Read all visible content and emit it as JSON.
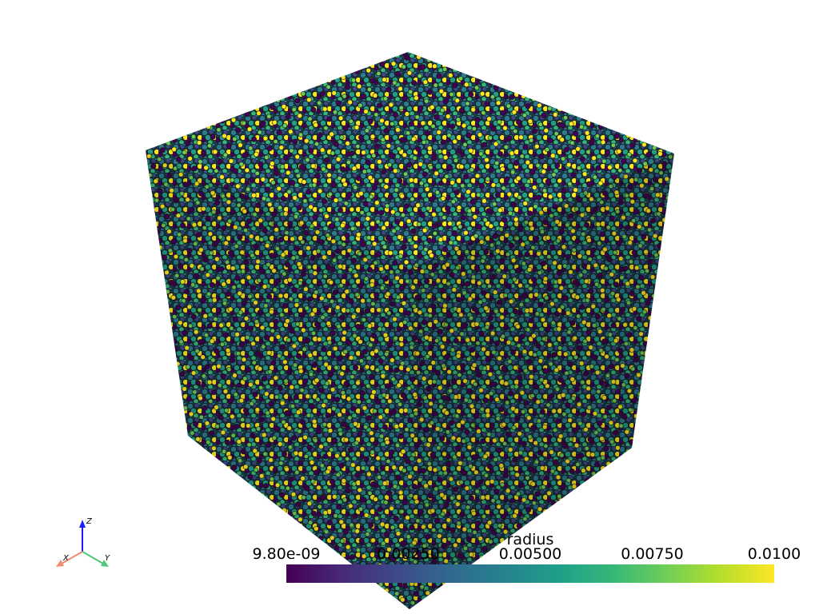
{
  "scalar_bar": {
    "title": "radius",
    "range": [
      9.8e-09,
      0.01
    ],
    "ticks": [
      {
        "value": 9.8e-09,
        "label": "9.80e-09"
      },
      {
        "value": 0.0025,
        "label": "0.00250"
      },
      {
        "value": 0.005,
        "label": "0.00500"
      },
      {
        "value": 0.0075,
        "label": "0.00750"
      },
      {
        "value": 0.01,
        "label": "0.0100"
      }
    ],
    "colormap": [
      "#440154",
      "#482878",
      "#3e4989",
      "#31688e",
      "#26828e",
      "#1f9e89",
      "#35b779",
      "#6ece58",
      "#b5de2b",
      "#fde725"
    ]
  },
  "axes_widget": {
    "x_label": "X",
    "y_label": "Y",
    "z_label": "Z"
  }
}
